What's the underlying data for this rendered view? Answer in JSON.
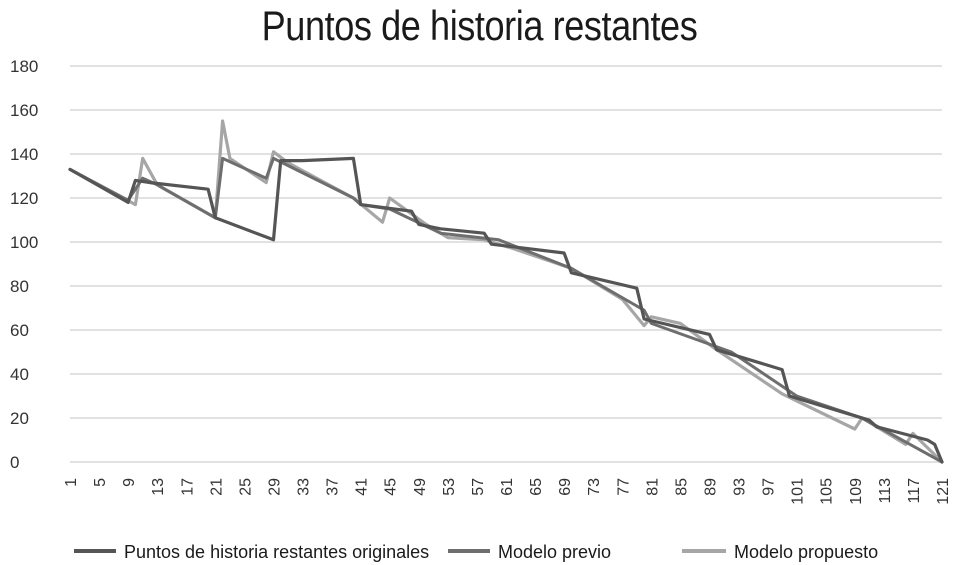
{
  "chart_data": {
    "type": "line",
    "title": "Puntos de historia restantes",
    "xlabel": "",
    "ylabel": "",
    "ylim": [
      0,
      180
    ],
    "yticks": [
      0,
      20,
      40,
      60,
      80,
      100,
      120,
      140,
      160,
      180
    ],
    "xlim": [
      1,
      121
    ],
    "xticks": [
      1,
      5,
      9,
      13,
      17,
      21,
      25,
      29,
      33,
      37,
      41,
      45,
      49,
      53,
      57,
      61,
      65,
      69,
      73,
      77,
      81,
      85,
      89,
      93,
      97,
      101,
      105,
      109,
      113,
      117,
      121
    ],
    "grid": "horizontal",
    "legend_position": "bottom",
    "colors": {
      "original": "#555555",
      "previo": "#6e6e6e",
      "propuesto": "#a6a6a6",
      "grid": "#d9d9d9"
    },
    "series": [
      {
        "name": "Puntos de historia restantes originales",
        "points": [
          [
            1,
            133
          ],
          [
            9,
            118
          ],
          [
            10,
            128
          ],
          [
            12,
            127
          ],
          [
            20,
            124
          ],
          [
            21,
            111
          ],
          [
            29,
            101
          ],
          [
            30,
            137
          ],
          [
            33,
            137
          ],
          [
            40,
            138
          ],
          [
            41,
            117
          ],
          [
            48,
            114
          ],
          [
            49,
            108
          ],
          [
            52,
            106
          ],
          [
            58,
            104
          ],
          [
            59,
            99
          ],
          [
            69,
            95
          ],
          [
            70,
            86
          ],
          [
            79,
            79
          ],
          [
            80,
            65
          ],
          [
            89,
            58
          ],
          [
            90,
            51
          ],
          [
            99,
            42
          ],
          [
            100,
            30
          ],
          [
            111,
            19
          ],
          [
            112,
            16
          ],
          [
            119,
            10
          ],
          [
            120,
            8
          ],
          [
            121,
            0
          ]
        ]
      },
      {
        "name": "Modelo previo",
        "points": [
          [
            1,
            133
          ],
          [
            9,
            119
          ],
          [
            11,
            129
          ],
          [
            13,
            126
          ],
          [
            21,
            111
          ],
          [
            22,
            138
          ],
          [
            24,
            135
          ],
          [
            28,
            129
          ],
          [
            29,
            138
          ],
          [
            40,
            120
          ],
          [
            41,
            117
          ],
          [
            45,
            115
          ],
          [
            52,
            104
          ],
          [
            60,
            101
          ],
          [
            70,
            88
          ],
          [
            80,
            69
          ],
          [
            81,
            63
          ],
          [
            92,
            50
          ],
          [
            101,
            30
          ],
          [
            110,
            20
          ],
          [
            121,
            0
          ]
        ]
      },
      {
        "name": "Modelo propuesto",
        "points": [
          [
            1,
            133
          ],
          [
            10,
            117
          ],
          [
            11,
            138
          ],
          [
            13,
            126
          ],
          [
            21,
            111
          ],
          [
            22,
            155
          ],
          [
            23,
            138
          ],
          [
            28,
            127
          ],
          [
            29,
            141
          ],
          [
            31,
            136
          ],
          [
            40,
            120
          ],
          [
            44,
            109
          ],
          [
            45,
            120
          ],
          [
            50,
            108
          ],
          [
            53,
            102
          ],
          [
            58,
            101
          ],
          [
            62,
            97
          ],
          [
            70,
            88
          ],
          [
            77,
            74
          ],
          [
            80,
            62
          ],
          [
            81,
            66
          ],
          [
            85,
            63
          ],
          [
            90,
            51
          ],
          [
            99,
            31
          ],
          [
            109,
            15
          ],
          [
            110,
            20
          ],
          [
            116,
            8
          ],
          [
            117,
            13
          ],
          [
            121,
            0
          ]
        ]
      }
    ]
  }
}
